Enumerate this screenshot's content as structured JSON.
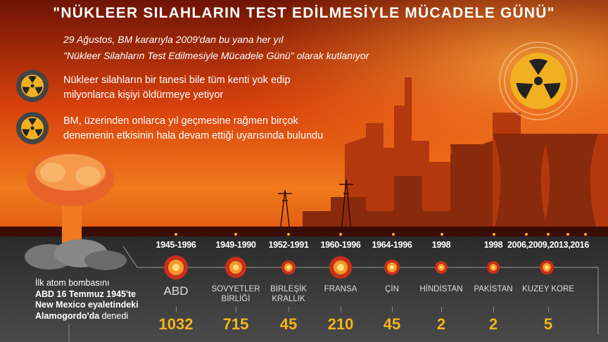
{
  "title": "\"NÜKLEER SILAHLARIN TEST EDİLMESİYLE MÜCADELE GÜNÜ\"",
  "subtitle": [
    "29 Ağustos, BM kararıyla 2009'dan bu yana her yıl",
    "\"Nükleer Silahların Test Edilmesiyle Mücadele Günü\" olarak kutlanıyor"
  ],
  "bullets": [
    {
      "icon": "radiation-icon",
      "lines": [
        "Nükleer silahların bir tanesi bile tüm kenti yok edip",
        "milyonlarca kişiyi öldürmeye yetiyor"
      ]
    },
    {
      "icon": "radiation-icon",
      "lines": [
        "BM, üzerinden onlarca yıl geçmesine rağmen birçok",
        "denemenin etkisinin hala devam ettiği uyarısında bulundu"
      ]
    }
  ],
  "first_test": {
    "line1": "İlk atom bombasını",
    "line2": "ABD 16 Temmuz 1945'te",
    "line3": "New Mexico eyaletindeki",
    "line4_bold": "Alamogordo'da",
    "line4_rest": " denedi"
  },
  "countries": [
    {
      "years": "1945-1996",
      "name": [
        "ABD"
      ],
      "tests": "1032"
    },
    {
      "years": "1949-1990",
      "name": [
        "SOVYETLER",
        "BİRLİĞİ"
      ],
      "tests": "715"
    },
    {
      "years": "1952-1991",
      "name": [
        "BİRLEŞİK",
        "KRALLIK"
      ],
      "tests": "45"
    },
    {
      "years": "1960-1996",
      "name": [
        "FRANSA"
      ],
      "tests": "210"
    },
    {
      "years": "1964-1996",
      "name": [
        "ÇİN"
      ],
      "tests": "45"
    },
    {
      "years": "1998",
      "name": [
        "HİNDİSTAN"
      ],
      "tests": "2"
    },
    {
      "years": "1998",
      "name": [
        "PAKİSTAN"
      ],
      "tests": "2"
    },
    {
      "years": "2006,2009,2013,2016",
      "name": [
        "KUZEY KORE"
      ],
      "tests": "5"
    }
  ],
  "colors": {
    "accent": "#f5b419",
    "sky_top": "#7a1606",
    "sky_mid": "#e0440e",
    "band": "#3a3a3a"
  }
}
